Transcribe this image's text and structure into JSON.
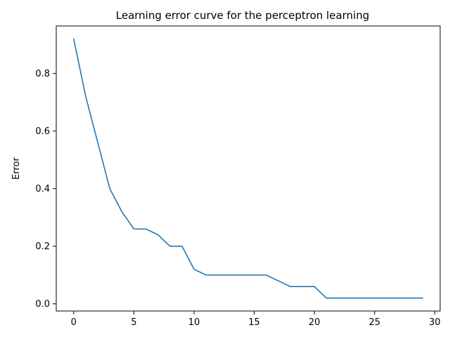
{
  "chart_data": {
    "type": "line",
    "title": "Learning error curve for the perceptron learning",
    "xlabel": "",
    "ylabel": "Error",
    "xlim": [
      -1.45,
      30.45
    ],
    "ylim": [
      -0.025,
      0.965
    ],
    "xticks": [
      0,
      5,
      10,
      15,
      20,
      25,
      30
    ],
    "xtick_labels": [
      "0",
      "5",
      "10",
      "15",
      "20",
      "25",
      "30"
    ],
    "yticks": [
      0.0,
      0.2,
      0.4,
      0.6,
      0.8
    ],
    "ytick_labels": [
      "0.0",
      "0.2",
      "0.4",
      "0.6",
      "0.8"
    ],
    "grid": false,
    "legend": "none",
    "series": [
      {
        "color": "#1f77b4",
        "x": [
          0,
          1,
          2,
          3,
          4,
          5,
          6,
          7,
          8,
          9,
          10,
          11,
          12,
          13,
          14,
          15,
          16,
          17,
          18,
          19,
          20,
          21,
          22,
          23,
          24,
          25,
          26,
          27,
          28,
          29
        ],
        "y": [
          0.92,
          0.72,
          0.56,
          0.4,
          0.32,
          0.26,
          0.26,
          0.24,
          0.2,
          0.2,
          0.12,
          0.1,
          0.1,
          0.1,
          0.1,
          0.1,
          0.1,
          0.08,
          0.06,
          0.06,
          0.06,
          0.02,
          0.02,
          0.02,
          0.02,
          0.02,
          0.02,
          0.02,
          0.02,
          0.02
        ]
      }
    ]
  }
}
